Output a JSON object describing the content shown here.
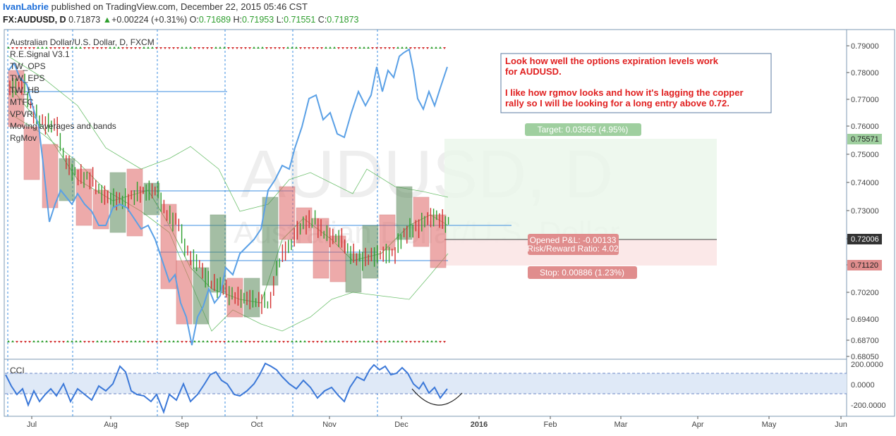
{
  "header": {
    "author": "IvanLabrie",
    "published": "published on TradingView.com, December 22, 2015 05:46 CST",
    "symbol": "FX:AUDUSD, D",
    "last": "0.71873",
    "change": "+0.00224 (+0.31%)",
    "o_label": "O:",
    "o": "0.71689",
    "h_label": "H:",
    "h": "0.71953",
    "l_label": "L:",
    "l": "0.71551",
    "c_label": "C:",
    "c": "0.71873"
  },
  "pane_title": "Australian Dollar/U.S. Dollar, D, FXCM",
  "indicators": [
    "R.E.Signal V3.1",
    "TW_OPS",
    "TW_EPS",
    "TW_HB",
    "MTFC",
    "VPVR",
    "Moving averages and bands",
    "RgMov"
  ],
  "watermark": {
    "main": "AUDUSD, D",
    "sub": "Australian Dollar/U.S. Dollar"
  },
  "note": {
    "lines1": [
      "Look how well the options expiration levels work",
      "for AUDUSD."
    ],
    "lines2": [
      "I like how rgmov looks and how it's lagging the copper",
      "rally so I will be looking for a long entry above 0.72."
    ]
  },
  "position_tool": {
    "target_label": "Target: 0.03565 (4.95%)",
    "pnl_label": "Opened P&L: -0.00133",
    "rr_label": "Risk/Reward Ratio: 4.02",
    "stop_label": "Stop: 0.00886 (1.23%)",
    "target_price": "0.75571",
    "entry_price": "0.72006",
    "stop_price": "0.71120"
  },
  "cci": {
    "label": "CCI",
    "ticks": [
      "200.0000",
      "0.0000",
      "-200.0000"
    ]
  },
  "colors": {
    "up": "#2e9e2e",
    "down": "#d32f2f",
    "line": "#5aa0e6",
    "bb": "#6ec06e",
    "ann": "#e02020",
    "target": "#9fcf9f",
    "stop": "#e08d8d"
  },
  "chart_data": {
    "type": "line",
    "title": "Australian Dollar/U.S. Dollar, D, FXCM",
    "price_axis_ticks": [
      "0.79000",
      "0.78000",
      "0.77000",
      "0.76000",
      "0.75000",
      "0.74000",
      "0.73000",
      "0.72000",
      "0.71000",
      "0.70200",
      "0.69400",
      "0.68700",
      "0.68050"
    ],
    "time_axis_ticks": [
      "Jul",
      "Aug",
      "Sep",
      "Oct",
      "Nov",
      "Dec",
      "2016",
      "Feb",
      "Mar",
      "Apr",
      "May",
      "Jun"
    ],
    "x": [
      "2015-06-22",
      "2015-07-06",
      "2015-07-20",
      "2015-08-03",
      "2015-08-17",
      "2015-08-31",
      "2015-09-14",
      "2015-09-28",
      "2015-10-12",
      "2015-10-26",
      "2015-11-09",
      "2015-11-23",
      "2015-12-07",
      "2015-12-21"
    ],
    "series": [
      {
        "name": "AUDUSD",
        "values": [
          0.776,
          0.755,
          0.737,
          0.731,
          0.732,
          0.705,
          0.701,
          0.702,
          0.729,
          0.714,
          0.711,
          0.728,
          0.723,
          0.719
        ]
      }
    ],
    "cci_values": [
      40,
      -30,
      -60,
      110,
      50,
      -140,
      -80,
      180,
      120,
      -20,
      -90,
      150,
      -40,
      0
    ],
    "ylim": [
      0.6805,
      0.7915
    ]
  }
}
